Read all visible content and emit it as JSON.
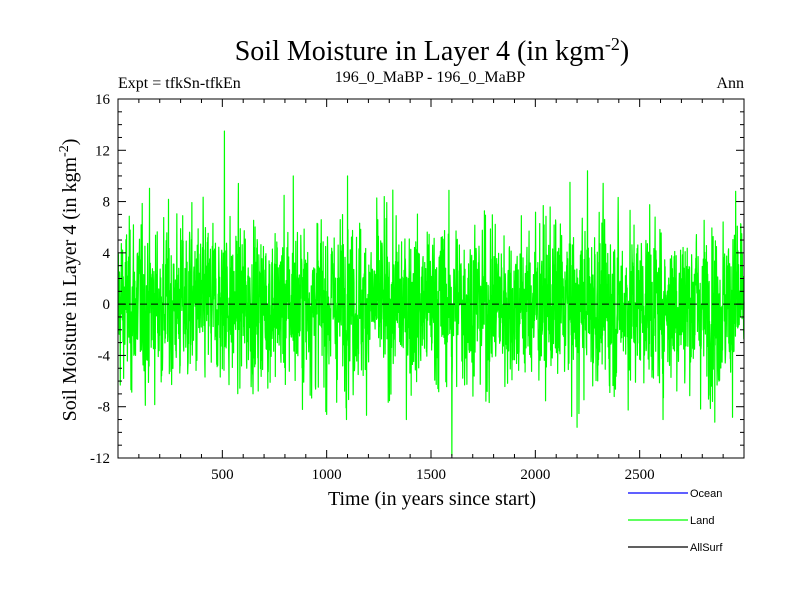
{
  "chart_data": {
    "type": "line",
    "title_main": "Soil Moisture in Layer 4 (in kgm",
    "title_sup": "-2",
    "title_close": ")",
    "subtitle_left": "Expt = tfkSn-tfkEn",
    "subtitle_center": "196_0_MaBP - 196_0_MaBP",
    "subtitle_right": "Ann",
    "xlabel": "Time (in years since start)",
    "ylabel_main": "Soil Moisture in Layer 4 (in kgm",
    "ylabel_sup": "-2",
    "ylabel_close": ")",
    "xlim": [
      0,
      3000
    ],
    "ylim": [
      -12,
      16
    ],
    "x_ticks": [
      500,
      1000,
      1500,
      2000,
      2500
    ],
    "x_tick_labels": [
      "500",
      "1000",
      "1500",
      "2000",
      "2500"
    ],
    "y_ticks": [
      -12,
      -8,
      -4,
      0,
      4,
      8,
      12,
      16
    ],
    "y_tick_labels": [
      "-12",
      "-8",
      "-4",
      "0",
      "4",
      "8",
      "12",
      "16"
    ],
    "zero_line": 0,
    "legend": [
      {
        "name": "Ocean",
        "color": "#0000ff"
      },
      {
        "name": "Land",
        "color": "#00ff00"
      },
      {
        "name": "AllSurf",
        "color": "#000000"
      }
    ],
    "series": [
      {
        "name": "Land",
        "color": "#00ff00",
        "description": "Annual values, roughly zero-mean noise, typically within -6 to 6",
        "n_years": 3000,
        "typical_amplitude": 3,
        "spikes": [
          {
            "year": 510,
            "value": 13.5
          },
          {
            "year": 840,
            "value": 10.0
          },
          {
            "year": 1100,
            "value": 10.0
          },
          {
            "year": 2250,
            "value": 10.4
          },
          {
            "year": 1600,
            "value": -11.8
          },
          {
            "year": 2200,
            "value": -9.6
          },
          {
            "year": 2860,
            "value": -9.2
          },
          {
            "year": 1000,
            "value": -8.6
          },
          {
            "year": 2960,
            "value": 8.8
          }
        ]
      }
    ]
  },
  "colors": {
    "axes": "#000000",
    "background": "#ffffff"
  }
}
